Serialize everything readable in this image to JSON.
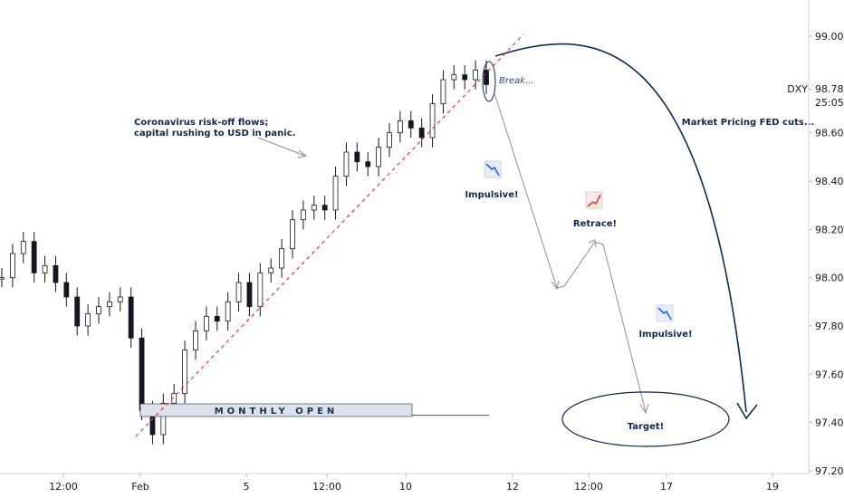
{
  "chart_data": {
    "type": "line",
    "symbol": "DXY",
    "ylim": [
      97.2,
      99.15
    ],
    "y_ticks": [
      "99.00",
      "98.78",
      "98.60",
      "98.40",
      "98.20",
      "98.00",
      "97.80",
      "97.60",
      "97.40",
      "97.20"
    ],
    "x_ticks": [
      "12:00",
      "Feb",
      "5",
      "12:00",
      "10",
      "12",
      "12:00",
      "17",
      "19"
    ],
    "current_price": "98.78",
    "countdown": "25:05",
    "series": [
      {
        "values": [
          98.0,
          98.1,
          98.15,
          98.02,
          98.05,
          97.98,
          97.92,
          97.8,
          97.85,
          97.88,
          97.9,
          97.92,
          97.75,
          97.45,
          97.35,
          97.48,
          97.52,
          97.7,
          97.78,
          97.84,
          97.82,
          97.9,
          97.98,
          97.88,
          98.02,
          98.04,
          98.12,
          98.24,
          98.28,
          98.3,
          98.28,
          98.42,
          98.52,
          98.48,
          98.46,
          98.54,
          98.6,
          98.65,
          98.62,
          98.58,
          98.72,
          98.82,
          98.84,
          98.82,
          98.86,
          98.8
        ]
      }
    ],
    "level_lines": [
      {
        "label": "MONTHLY OPEN",
        "value": 97.43
      }
    ],
    "annotations": {
      "risk_off": [
        "Coronavirus risk-off flows;",
        "capital rushing to USD in panic."
      ],
      "break": "Break...",
      "impulsive_1": "Impulsive!",
      "retrace": "Retrace!",
      "impulsive_2": "Impulsive!",
      "target": "Target!",
      "fed": "Market Pricing FED cuts..."
    },
    "colors": {
      "candles": "#131722",
      "trendline": "#e53935",
      "projection_arc": "#0f2a52",
      "projection_path": "#8a8f98",
      "monthly_open_box": "#dde2ea",
      "down_icon": "#2962ff",
      "up_icon": "#e53935"
    }
  }
}
